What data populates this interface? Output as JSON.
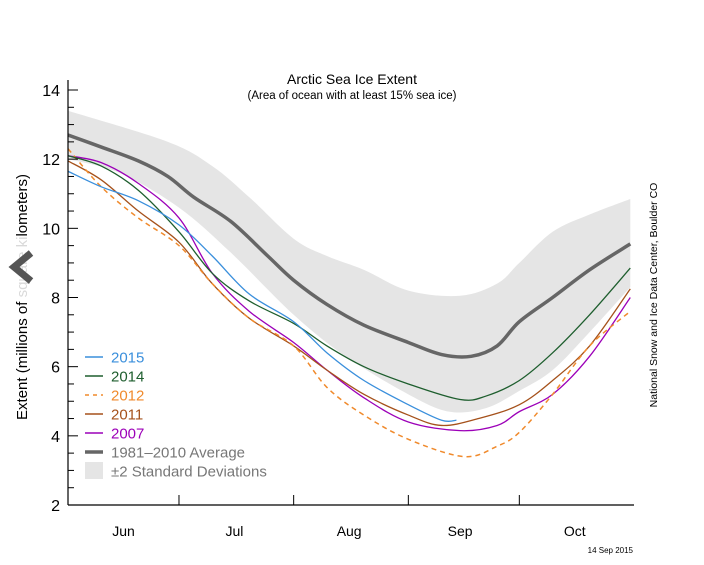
{
  "chart_data": {
    "type": "line",
    "title": "Arctic Sea Ice Extent",
    "subtitle": "(Area of ocean with at least 15% sea ice)",
    "ylabel": "Extent (millions of square kilometers)",
    "xlabel": "",
    "ylim": [
      2,
      14
    ],
    "yticks": [
      "2",
      "4",
      "6",
      "8",
      "10",
      "12",
      "14"
    ],
    "xlim": [
      "06-01",
      "10-31"
    ],
    "month_labels": [
      {
        "label": "Jun",
        "date": "06-16"
      },
      {
        "label": "Jul",
        "date": "07-16"
      },
      {
        "label": "Aug",
        "date": "08-16"
      },
      {
        "label": "Sep",
        "date": "09-15"
      },
      {
        "label": "Oct",
        "date": "10-16"
      }
    ],
    "month_ticks": [
      "07-01",
      "08-01",
      "09-01",
      "10-01"
    ],
    "grid": false,
    "legend_position": "bottom-left",
    "band": {
      "name": "±2 Standard Deviations",
      "color": "#e5e5e5",
      "upper": [
        [
          "06-01",
          13.4
        ],
        [
          "06-28",
          12.5
        ],
        [
          "07-10",
          11.8
        ],
        [
          "07-20",
          10.9
        ],
        [
          "08-01",
          9.7
        ],
        [
          "08-10",
          9.2
        ],
        [
          "08-20",
          8.8
        ],
        [
          "09-01",
          8.2
        ],
        [
          "09-15",
          8.05
        ],
        [
          "09-25",
          8.4
        ],
        [
          "10-01",
          9.0
        ],
        [
          "10-10",
          9.9
        ],
        [
          "10-20",
          10.4
        ],
        [
          "10-31",
          10.85
        ]
      ],
      "lower": [
        [
          "06-01",
          12.0
        ],
        [
          "06-15",
          11.6
        ],
        [
          "07-01",
          10.6
        ],
        [
          "07-15",
          9.3
        ],
        [
          "08-01",
          7.5
        ],
        [
          "08-15",
          6.3
        ],
        [
          "09-01",
          5.2
        ],
        [
          "09-12",
          4.7
        ],
        [
          "09-22",
          4.8
        ],
        [
          "10-01",
          5.3
        ],
        [
          "10-10",
          5.9
        ],
        [
          "10-20",
          7.0
        ],
        [
          "10-31",
          8.3
        ]
      ]
    },
    "series": [
      {
        "name": "2015",
        "color": "#3a8fdc",
        "dashed": false,
        "width": 1.3,
        "points": [
          [
            "06-01",
            11.65
          ],
          [
            "06-10",
            11.2
          ],
          [
            "06-20",
            10.8
          ],
          [
            "07-01",
            10.1
          ],
          [
            "07-10",
            9.2
          ],
          [
            "07-20",
            8.1
          ],
          [
            "08-01",
            7.3
          ],
          [
            "08-10",
            6.4
          ],
          [
            "08-20",
            5.6
          ],
          [
            "09-01",
            4.9
          ],
          [
            "09-10",
            4.45
          ],
          [
            "09-14",
            4.45
          ]
        ]
      },
      {
        "name": "2014",
        "color": "#1e5e2e",
        "dashed": false,
        "width": 1.3,
        "points": [
          [
            "06-01",
            12.1
          ],
          [
            "06-10",
            11.8
          ],
          [
            "06-20",
            11.1
          ],
          [
            "07-01",
            9.9
          ],
          [
            "07-10",
            8.7
          ],
          [
            "07-20",
            7.9
          ],
          [
            "08-01",
            7.25
          ],
          [
            "08-10",
            6.6
          ],
          [
            "08-20",
            6.0
          ],
          [
            "09-01",
            5.5
          ],
          [
            "09-15",
            5.05
          ],
          [
            "09-22",
            5.15
          ],
          [
            "10-01",
            5.6
          ],
          [
            "10-10",
            6.4
          ],
          [
            "10-20",
            7.5
          ],
          [
            "10-31",
            8.85
          ]
        ]
      },
      {
        "name": "2012",
        "color": "#f08a2c",
        "dashed": true,
        "width": 1.5,
        "points": [
          [
            "06-01",
            12.3
          ],
          [
            "06-10",
            11.2
          ],
          [
            "06-20",
            10.3
          ],
          [
            "07-01",
            9.5
          ],
          [
            "07-10",
            8.4
          ],
          [
            "07-20",
            7.4
          ],
          [
            "08-01",
            6.6
          ],
          [
            "08-10",
            5.4
          ],
          [
            "08-20",
            4.6
          ],
          [
            "09-01",
            3.9
          ],
          [
            "09-16",
            3.4
          ],
          [
            "09-25",
            3.7
          ],
          [
            "10-01",
            4.1
          ],
          [
            "10-10",
            5.2
          ],
          [
            "10-20",
            6.6
          ],
          [
            "10-31",
            7.6
          ]
        ]
      },
      {
        "name": "2011",
        "color": "#a5511b",
        "dashed": false,
        "width": 1.3,
        "points": [
          [
            "06-01",
            11.95
          ],
          [
            "06-10",
            11.4
          ],
          [
            "06-20",
            10.5
          ],
          [
            "07-01",
            9.6
          ],
          [
            "07-10",
            8.4
          ],
          [
            "07-20",
            7.4
          ],
          [
            "08-01",
            6.6
          ],
          [
            "08-10",
            5.9
          ],
          [
            "08-20",
            5.2
          ],
          [
            "09-01",
            4.6
          ],
          [
            "09-10",
            4.3
          ],
          [
            "09-20",
            4.5
          ],
          [
            "10-01",
            4.9
          ],
          [
            "10-10",
            5.6
          ],
          [
            "10-20",
            6.6
          ],
          [
            "10-31",
            8.25
          ]
        ]
      },
      {
        "name": "2007",
        "color": "#9c00b8",
        "dashed": false,
        "width": 1.3,
        "points": [
          [
            "06-01",
            12.1
          ],
          [
            "06-10",
            11.9
          ],
          [
            "06-20",
            11.3
          ],
          [
            "07-01",
            10.3
          ],
          [
            "07-10",
            8.7
          ],
          [
            "07-20",
            7.6
          ],
          [
            "08-01",
            6.7
          ],
          [
            "08-10",
            5.9
          ],
          [
            "08-20",
            5.1
          ],
          [
            "09-01",
            4.4
          ],
          [
            "09-15",
            4.15
          ],
          [
            "09-25",
            4.3
          ],
          [
            "10-01",
            4.7
          ],
          [
            "10-10",
            5.2
          ],
          [
            "10-20",
            6.3
          ],
          [
            "10-31",
            8.0
          ]
        ]
      },
      {
        "name": "1981–2010 Average",
        "color": "#666666",
        "dashed": false,
        "width": 3.5,
        "points": [
          [
            "06-01",
            12.7
          ],
          [
            "06-10",
            12.35
          ],
          [
            "06-20",
            11.95
          ],
          [
            "06-28",
            11.5
          ],
          [
            "07-05",
            10.9
          ],
          [
            "07-15",
            10.2
          ],
          [
            "07-25",
            9.2
          ],
          [
            "08-01",
            8.5
          ],
          [
            "08-10",
            7.8
          ],
          [
            "08-20",
            7.2
          ],
          [
            "09-01",
            6.7
          ],
          [
            "09-10",
            6.35
          ],
          [
            "09-18",
            6.3
          ],
          [
            "09-25",
            6.6
          ],
          [
            "10-01",
            7.3
          ],
          [
            "10-10",
            8.0
          ],
          [
            "10-20",
            8.8
          ],
          [
            "10-31",
            9.55
          ]
        ]
      }
    ],
    "credit": "National Snow and Ice Data Center, Boulder CO",
    "date_stamp": "14 Sep 2015"
  },
  "nav": {
    "back_icon": "chevron-left-icon"
  }
}
